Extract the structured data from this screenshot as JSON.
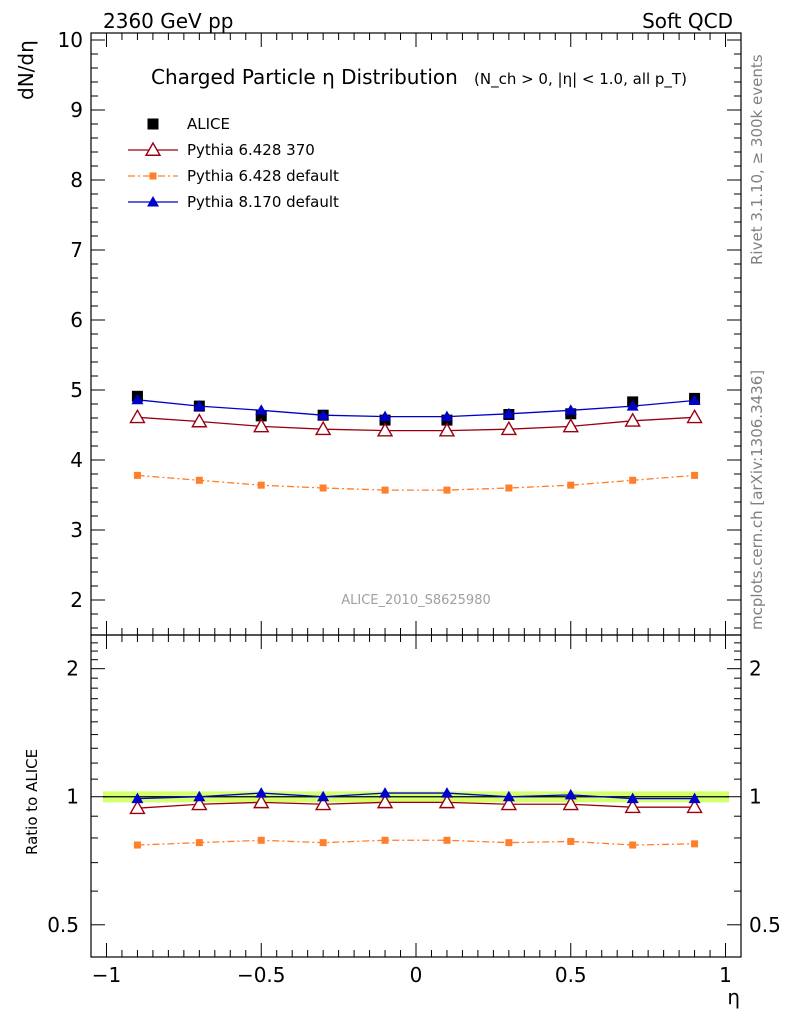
{
  "header": {
    "left": "2360 GeV pp",
    "right": "Soft QCD"
  },
  "side_labels": {
    "top": "Rivet 3.1.10, ≥ 300k events",
    "bottom": "mcplots.cern.ch [arXiv:1306.3436]"
  },
  "watermark": "ALICE_2010_S8625980",
  "chart_data": [
    {
      "type": "line",
      "title": "Charged Particle η Distribution",
      "subtitle": "(N_ch > 0, |η| < 1.0, all p_T)",
      "ylabel": "dN/dη",
      "xlabel": "η",
      "xlim": [
        -1.05,
        1.05
      ],
      "ylim": [
        1.5,
        10.1
      ],
      "yticks": [
        2,
        3,
        4,
        5,
        6,
        7,
        8,
        9,
        10
      ],
      "x": [
        -0.9,
        -0.7,
        -0.5,
        -0.3,
        -0.1,
        0.1,
        0.3,
        0.5,
        0.7,
        0.9
      ],
      "legend_placement": "top-left",
      "series": [
        {
          "name": "ALICE",
          "color": "#000000",
          "marker": "square",
          "line": "none",
          "values": [
            4.91,
            4.77,
            4.63,
            4.64,
            4.57,
            4.57,
            4.65,
            4.66,
            4.83,
            4.88
          ]
        },
        {
          "name": "Pythia 6.428 370",
          "color": "#990011",
          "marker": "open-triangle",
          "line": "solid",
          "values": [
            4.61,
            4.55,
            4.48,
            4.44,
            4.42,
            4.42,
            4.44,
            4.48,
            4.56,
            4.61
          ]
        },
        {
          "name": "Pythia 6.428 default",
          "color": "#ff7f2a",
          "marker": "small-square",
          "line": "dashdot",
          "values": [
            3.78,
            3.71,
            3.64,
            3.6,
            3.57,
            3.57,
            3.6,
            3.64,
            3.71,
            3.78
          ]
        },
        {
          "name": "Pythia 8.170 default",
          "color": "#0000cc",
          "marker": "filled-triangle",
          "line": "solid",
          "values": [
            4.86,
            4.77,
            4.71,
            4.64,
            4.62,
            4.62,
            4.66,
            4.71,
            4.77,
            4.85
          ]
        }
      ]
    },
    {
      "type": "line",
      "ylabel": "Ratio to ALICE",
      "xlabel": "η",
      "xlim": [
        -1.05,
        1.05
      ],
      "ylim": [
        0.42,
        2.4
      ],
      "scale": "log",
      "yticks": [
        0.5,
        1,
        2
      ],
      "yticklabels": [
        "0.5",
        "1",
        "2"
      ],
      "xticks": [
        -1,
        -0.5,
        0,
        0.5,
        1
      ],
      "xticklabels": [
        "−1",
        "−0.5",
        "0",
        "0.5",
        "1"
      ],
      "x": [
        -0.9,
        -0.7,
        -0.5,
        -0.3,
        -0.1,
        0.1,
        0.3,
        0.5,
        0.7,
        0.9
      ],
      "band": {
        "color": "#ccff55",
        "low": 0.97,
        "high": 1.03
      },
      "series": [
        {
          "name": "Pythia 6.428 370",
          "color": "#990011",
          "marker": "open-triangle",
          "line": "solid",
          "values": [
            0.94,
            0.96,
            0.97,
            0.96,
            0.97,
            0.97,
            0.96,
            0.96,
            0.945,
            0.945
          ]
        },
        {
          "name": "Pythia 6.428 default",
          "color": "#ff7f2a",
          "marker": "small-square",
          "line": "dashdot",
          "values": [
            0.77,
            0.78,
            0.79,
            0.78,
            0.79,
            0.79,
            0.78,
            0.785,
            0.77,
            0.775
          ]
        },
        {
          "name": "Pythia 8.170 default",
          "color": "#0000cc",
          "marker": "filled-triangle",
          "line": "solid",
          "values": [
            0.99,
            1.0,
            1.02,
            1.0,
            1.02,
            1.02,
            1.0,
            1.01,
            0.99,
            0.99
          ]
        }
      ]
    }
  ]
}
